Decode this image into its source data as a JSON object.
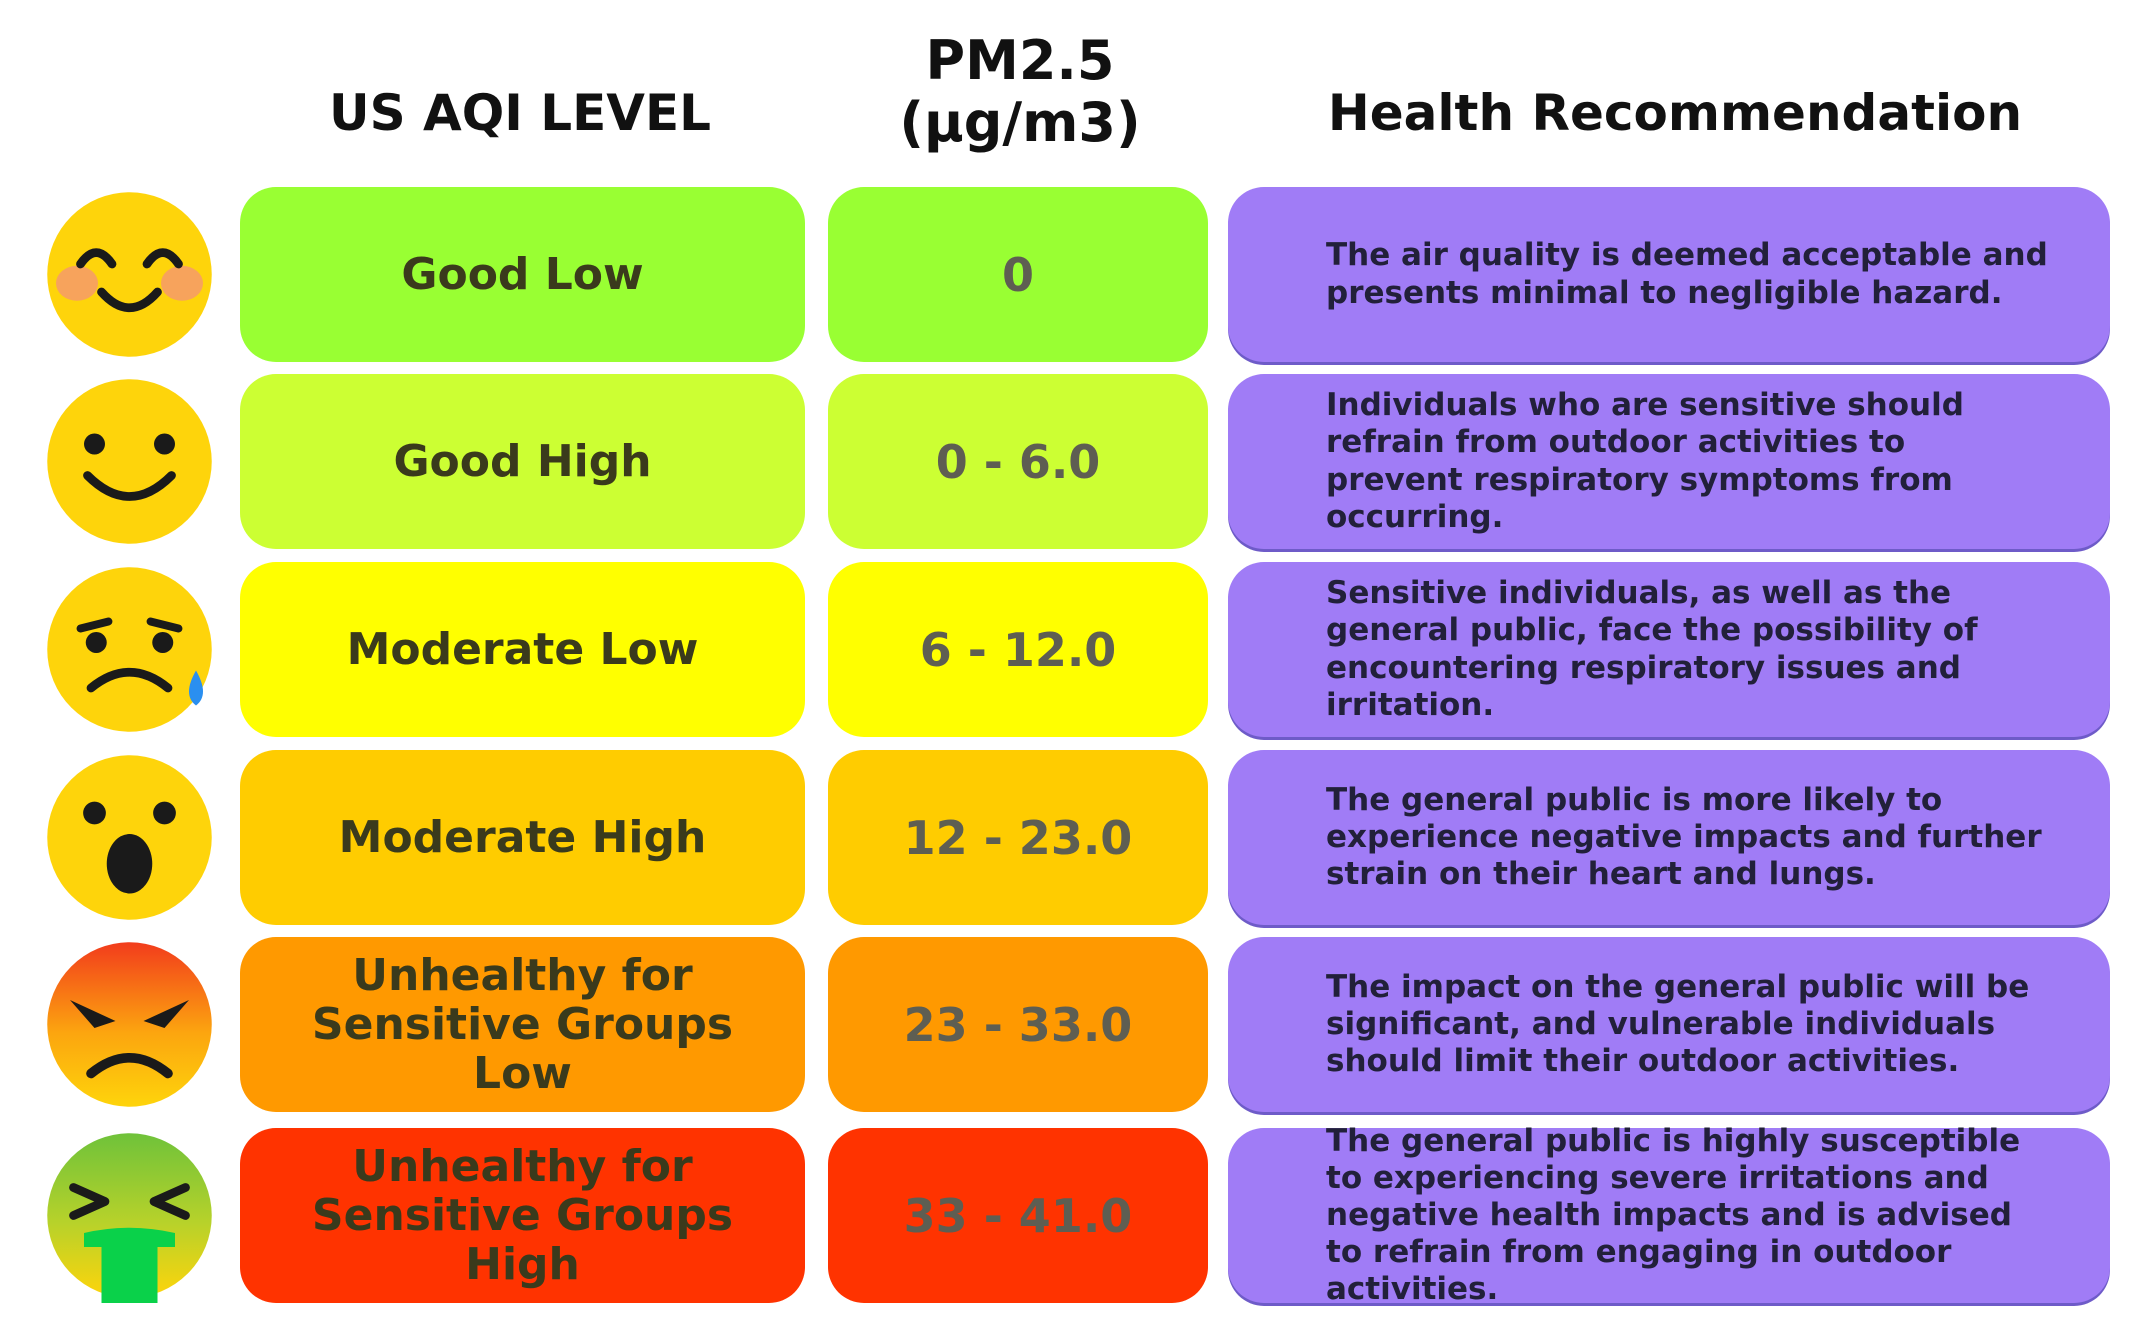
{
  "headers": {
    "level": "US AQI LEVEL",
    "pm25_line1": "PM2.5",
    "pm25_line2": "(µg/m3)",
    "health": "Health Recommendation"
  },
  "rows": [
    {
      "face_icon": "smiling-blush-face-icon",
      "level": "Good Low",
      "pm25": "0",
      "health": "The air quality is deemed acceptable and presents minimal to negligible hazard.",
      "color": "#99ff33"
    },
    {
      "face_icon": "slight-smile-face-icon",
      "level": "Good High",
      "pm25": "0 - 6.0",
      "health": "Individuals who are sensitive should refrain from outdoor activities to prevent respiratory symptoms from occurring.",
      "color": "#ccff33"
    },
    {
      "face_icon": "sad-sweat-face-icon",
      "level": "Moderate Low",
      "pm25": "6 - 12.0",
      "health": "Sensitive individuals, as well as the general public, face the possibility of encountering respiratory issues and irritation.",
      "color": "#ffff00"
    },
    {
      "face_icon": "surprised-face-icon",
      "level": "Moderate High",
      "pm25": "12 - 23.0",
      "health": "The general public is more likely to experience negative impacts and further strain on their heart and lungs.",
      "color": "#ffcc00"
    },
    {
      "face_icon": "angry-face-icon",
      "level": "Unhealthy for Sensitive Groups Low",
      "pm25": "23 - 33.0",
      "health": "The impact on the general public will be significant, and vulnerable individuals should limit their outdoor activities.",
      "color": "#ff9900"
    },
    {
      "face_icon": "vomiting-face-icon",
      "level": "Unhealthy for Sensitive Groups High",
      "pm25": "33 - 41.0",
      "health": "The general public is highly susceptible to experiencing severe irritations and negative health impacts and is advised to refrain from engaging in outdoor activities.",
      "color": "#ff3300"
    }
  ]
}
